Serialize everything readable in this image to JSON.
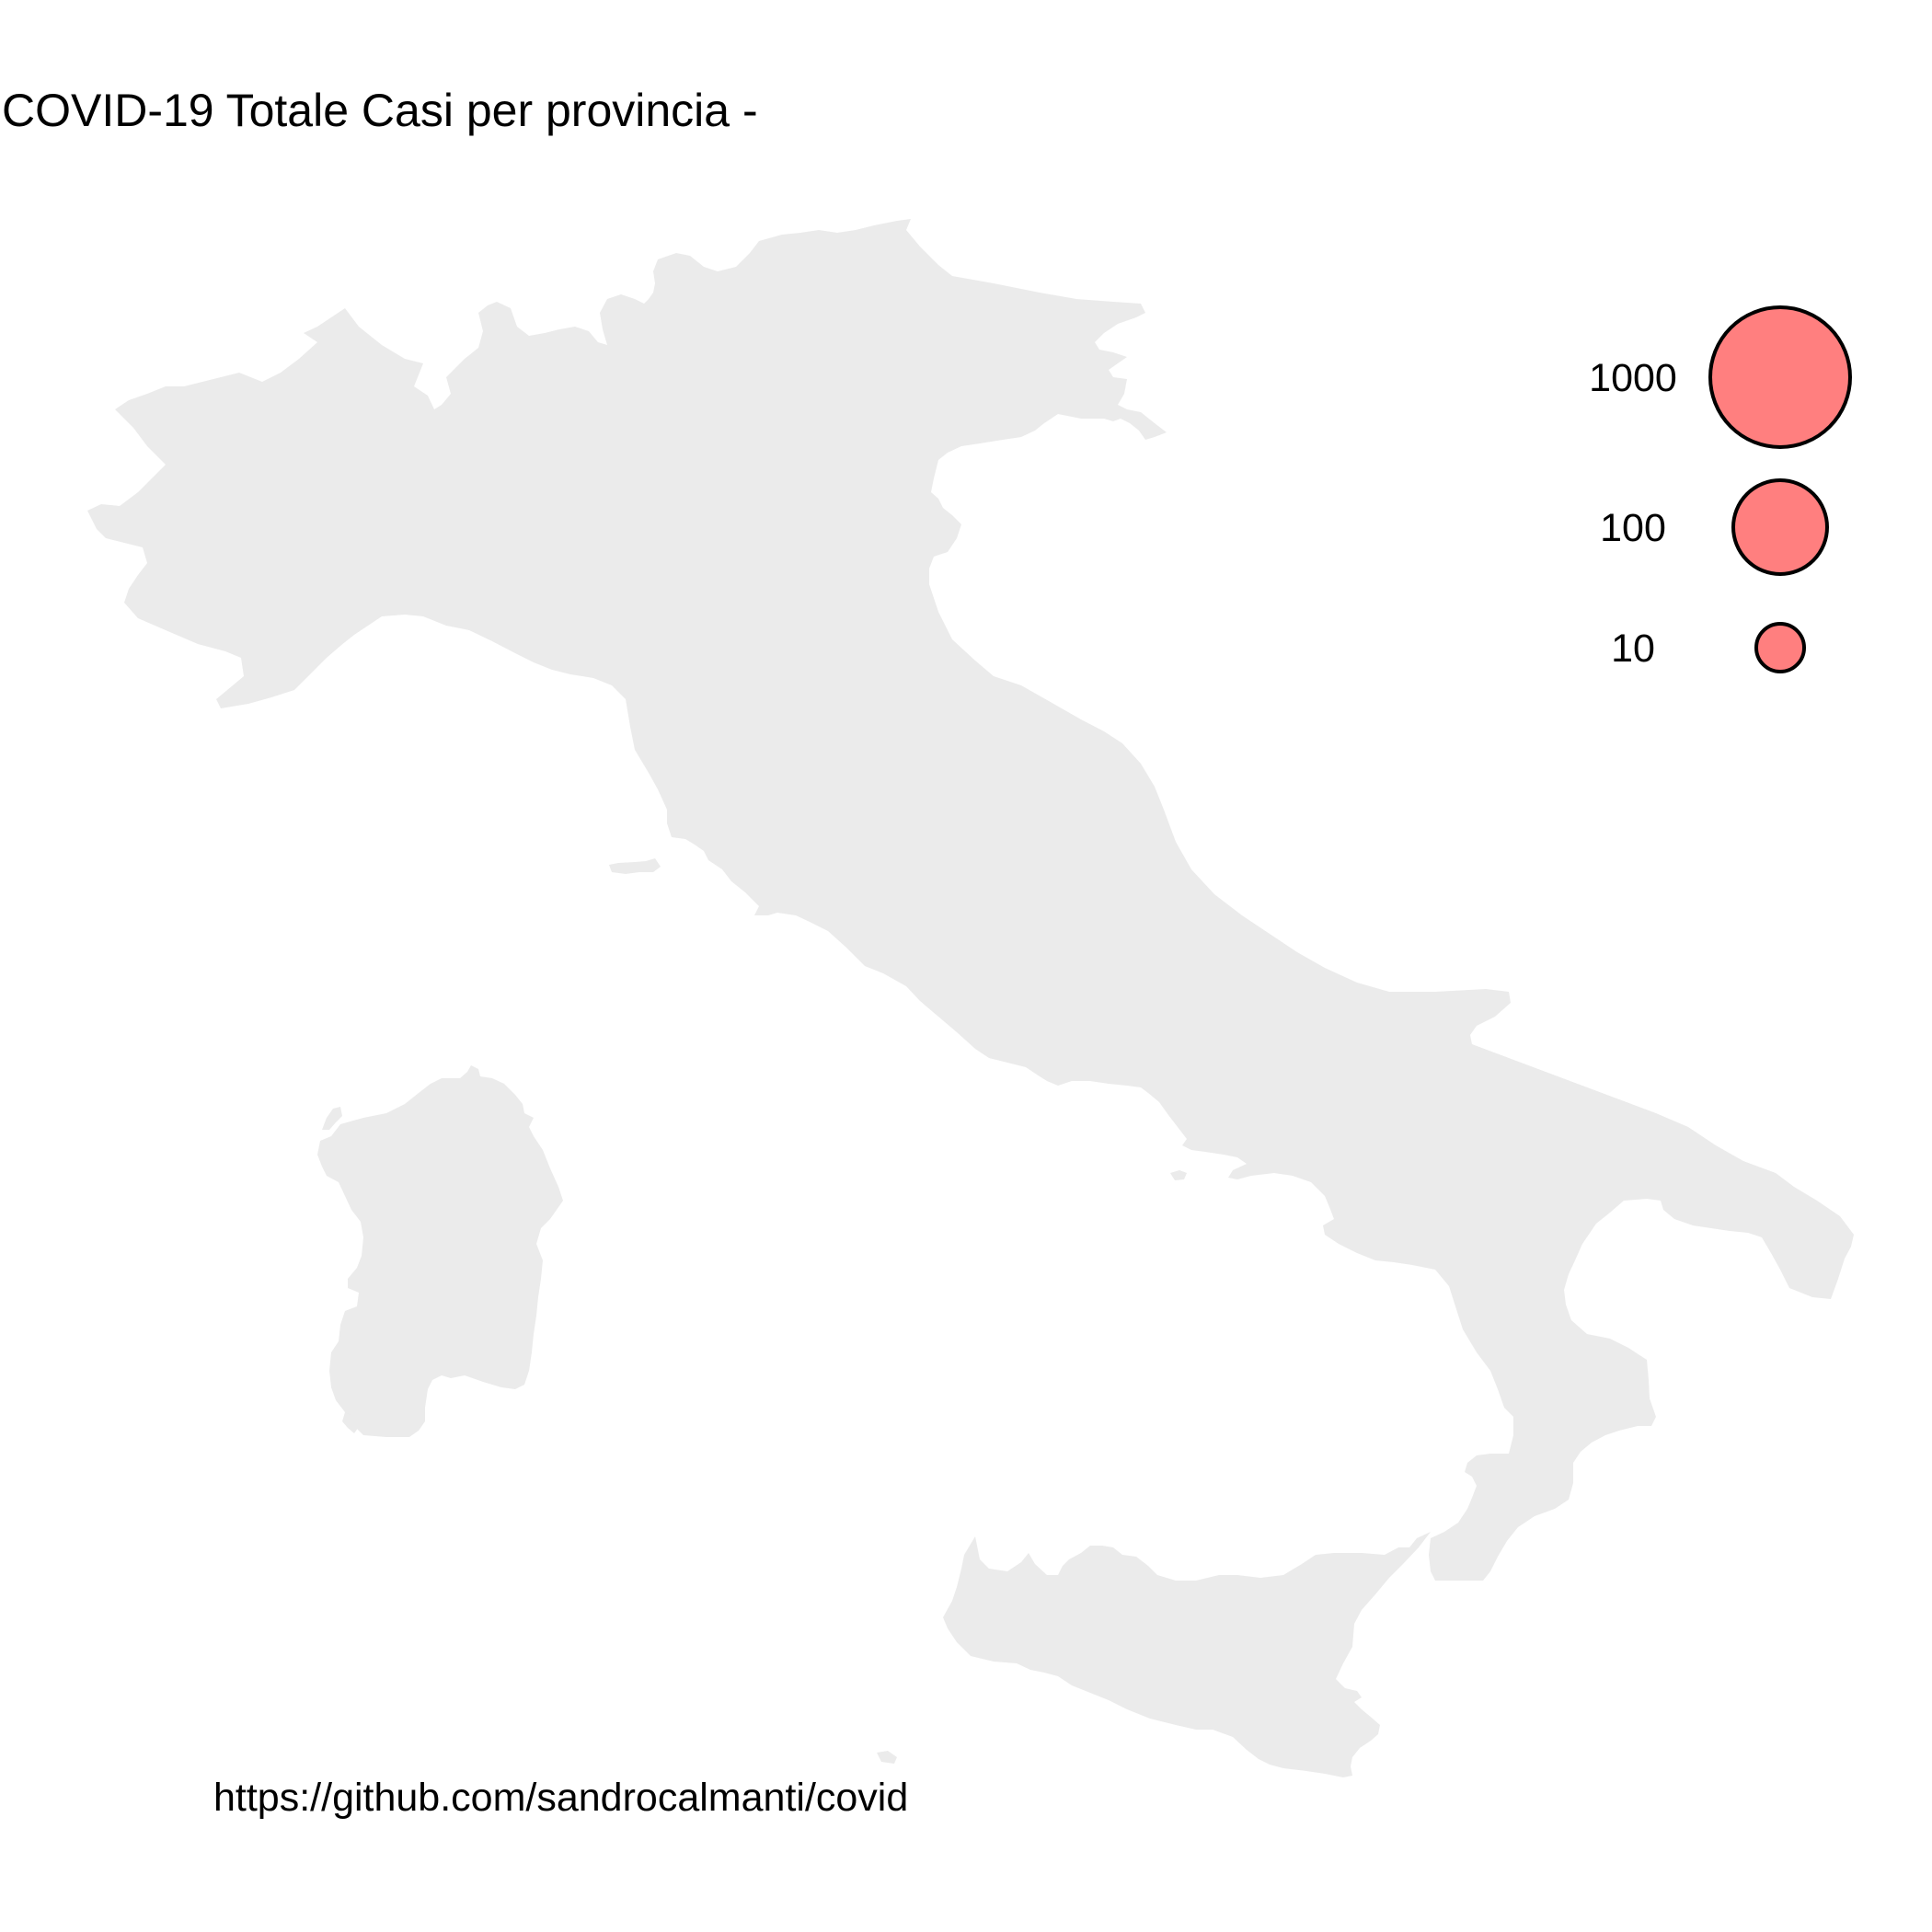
{
  "title": "COVID-19  Totale Casi per provincia -",
  "caption": "https://github.com/sandrocalmanti/covid",
  "map": {
    "land_color": "#ebebeb",
    "regions": [
      "mainland",
      "sardinia",
      "sicily",
      "elba",
      "ischia",
      "asinara",
      "lampedusa"
    ]
  },
  "legend": {
    "fill_color": "#ff7f7f",
    "stroke_color": "#000000",
    "items": [
      {
        "label": "1000",
        "value": 1000
      },
      {
        "label": "100",
        "value": 100
      },
      {
        "label": "10",
        "value": 10
      }
    ]
  }
}
